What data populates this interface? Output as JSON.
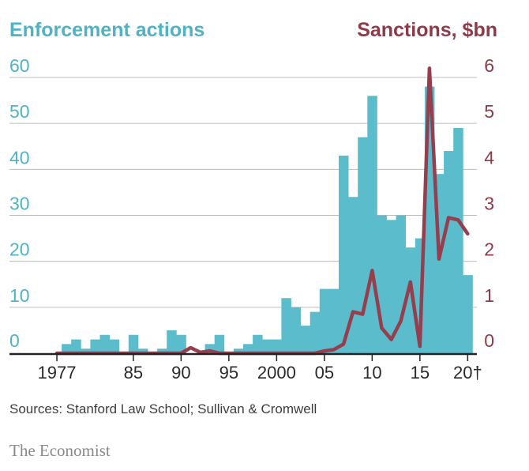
{
  "chart_data": {
    "type": "bar",
    "left_axis_title": "Enforcement actions",
    "right_axis_title": "Sanctions, $bn",
    "years": [
      1977,
      1978,
      1979,
      1980,
      1981,
      1982,
      1983,
      1984,
      1985,
      1986,
      1987,
      1988,
      1989,
      1990,
      1991,
      1992,
      1993,
      1994,
      1995,
      1996,
      1997,
      1998,
      1999,
      2000,
      2001,
      2002,
      2003,
      2004,
      2005,
      2006,
      2007,
      2008,
      2009,
      2010,
      2011,
      2012,
      2013,
      2014,
      2015,
      2016,
      2017,
      2018,
      2019,
      2020
    ],
    "x_tick_years": [
      1977,
      1985,
      1990,
      1995,
      2000,
      2005,
      2010,
      2015,
      2020
    ],
    "x_tick_labels": [
      "1977",
      "85",
      "90",
      "95",
      "2000",
      "05",
      "10",
      "15",
      "20†"
    ],
    "series": [
      {
        "name": "Enforcement actions",
        "axis": "left",
        "type": "bar",
        "color": "#5bbccc",
        "values": [
          0,
          2,
          3,
          1,
          3,
          4,
          3,
          0,
          4,
          1,
          0,
          1,
          5,
          4,
          0,
          0,
          2,
          4,
          0,
          1,
          2,
          4,
          3,
          3,
          12,
          10,
          6,
          9,
          14,
          14,
          43,
          34,
          47,
          56,
          30,
          29,
          30,
          23,
          25,
          58,
          39,
          44,
          49,
          17
        ]
      },
      {
        "name": "Sanctions, $bn",
        "axis": "right",
        "type": "line",
        "color": "#963e4e",
        "values": [
          0,
          0,
          0,
          0,
          0,
          0,
          0,
          0,
          0,
          0,
          0,
          0,
          0,
          0,
          0.12,
          0.02,
          0.05,
          0,
          0,
          0,
          0,
          0,
          0,
          0,
          0,
          0,
          0,
          0,
          0.05,
          0.08,
          0.2,
          0.9,
          0.85,
          1.8,
          0.55,
          0.3,
          0.7,
          1.55,
          0.15,
          6.2,
          2.05,
          2.95,
          2.9,
          2.6
        ]
      }
    ],
    "left_axis": {
      "min": 0,
      "max": 60,
      "ticks": [
        0,
        10,
        20,
        30,
        40,
        50,
        60
      ]
    },
    "right_axis": {
      "min": 0,
      "max": 6,
      "ticks": [
        0,
        1,
        2,
        3,
        4,
        5,
        6
      ]
    },
    "grid": true
  },
  "source_note": "Sources: Stanford Law School; Sullivan & Cromwell",
  "brand": "The Economist",
  "colors": {
    "bars": "#5bbccc",
    "line": "#963e4e",
    "grid": "#bcbcbc",
    "axis": "#222222"
  }
}
